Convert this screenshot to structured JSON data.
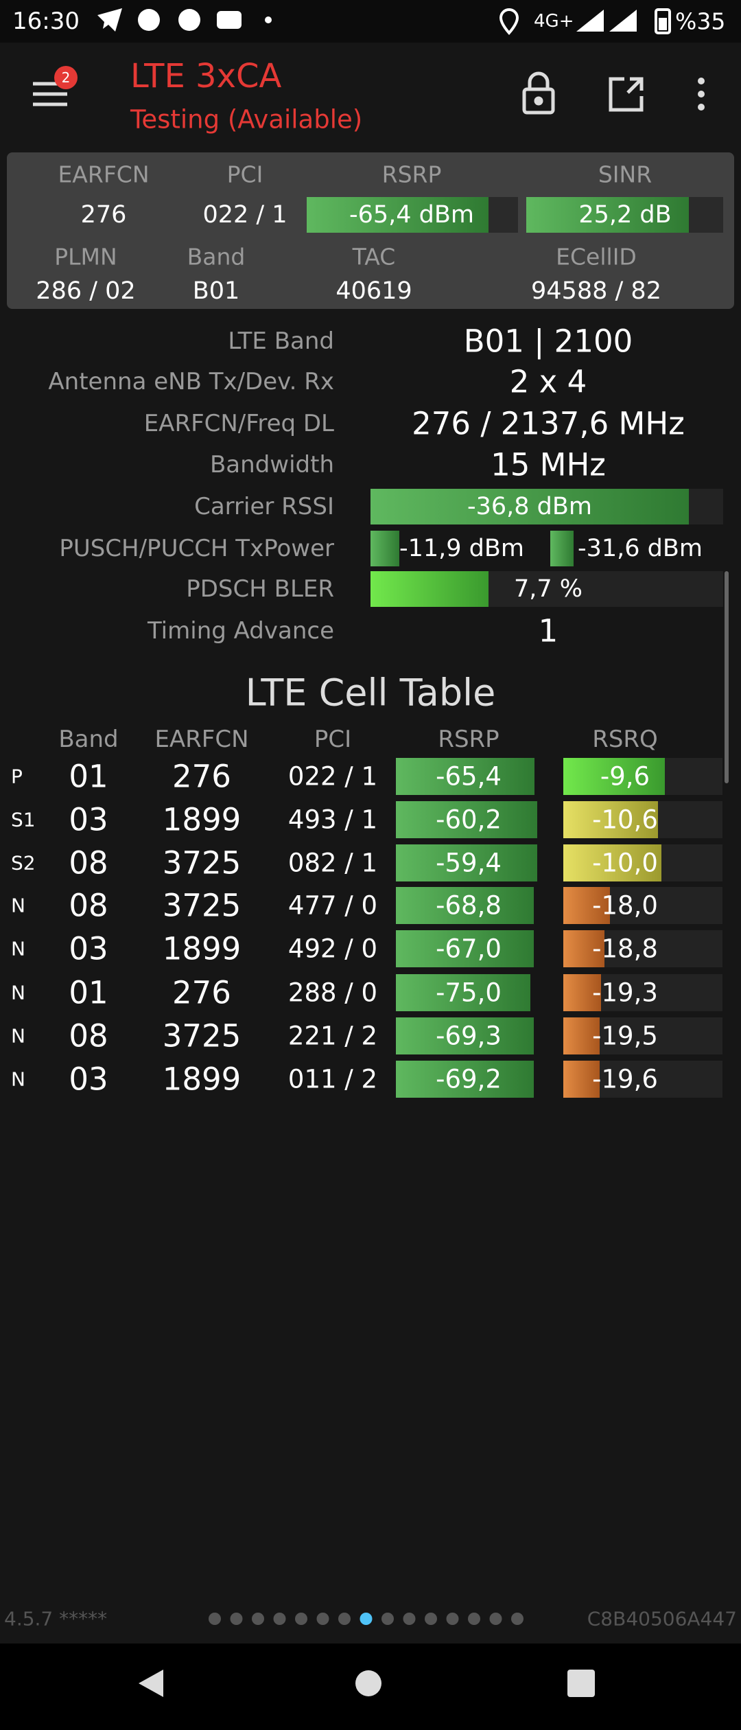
{
  "status_bar": {
    "time": "16:30",
    "network": "4G+",
    "battery": "%35"
  },
  "app_bar": {
    "title": "LTE 3xCA",
    "subtitle": "Testing (Available)",
    "badge": "2"
  },
  "summary": {
    "headers": [
      "EARFCN",
      "PCI",
      "RSRP",
      "SINR"
    ],
    "values": [
      "276",
      "022 / 1",
      "-65,4 dBm",
      "25,2 dB"
    ],
    "headers2": [
      "PLMN",
      "Band",
      "TAC",
      "ECellID"
    ],
    "values2": [
      "286 / 02",
      "B01",
      "40619",
      "94588 / 82"
    ]
  },
  "details": [
    {
      "label": "LTE Band",
      "value": "B01 | 2100"
    },
    {
      "label": "Antenna eNB Tx/Dev. Rx",
      "value": "2 x 4"
    },
    {
      "label": "EARFCN/Freq DL",
      "value": "276 / 2137,6 MHz"
    },
    {
      "label": "Bandwidth",
      "value": "15 MHz"
    },
    {
      "label": "Carrier RSSI",
      "value": "-36,8 dBm"
    },
    {
      "label": "PUSCH/PUCCH TxPower",
      "value": "-11,9 dBm",
      "value2": "-31,6 dBm"
    },
    {
      "label": "PDSCH BLER",
      "value": "7,7 %"
    },
    {
      "label": "Timing Advance",
      "value": "1"
    }
  ],
  "cell_table": {
    "title": "LTE Cell Table",
    "columns": [
      "Band",
      "EARFCN",
      "PCI",
      "RSRP",
      "RSRQ"
    ],
    "rows": [
      [
        "P",
        "01",
        "276",
        "022 / 1",
        "-65,4",
        "-9,6"
      ],
      [
        "S1",
        "03",
        "1899",
        "493 / 1",
        "-60,2",
        "-10,6"
      ],
      [
        "S2",
        "08",
        "3725",
        "082 / 1",
        "-59,4",
        "-10,0"
      ],
      [
        "N",
        "08",
        "3725",
        "477 / 0",
        "-68,8",
        "-18,0"
      ],
      [
        "N",
        "03",
        "1899",
        "492 / 0",
        "-67,0",
        "-18,8"
      ],
      [
        "N",
        "01",
        "276",
        "288 / 0",
        "-75,0",
        "-19,3"
      ],
      [
        "N",
        "08",
        "3725",
        "221 / 2",
        "-69,3",
        "-19,5"
      ],
      [
        "N",
        "03",
        "1899",
        "011 / 2",
        "-69,2",
        "-19,6"
      ]
    ]
  },
  "footer": {
    "version": "4.5.7 *****",
    "device_id": "C8B40506A447"
  }
}
